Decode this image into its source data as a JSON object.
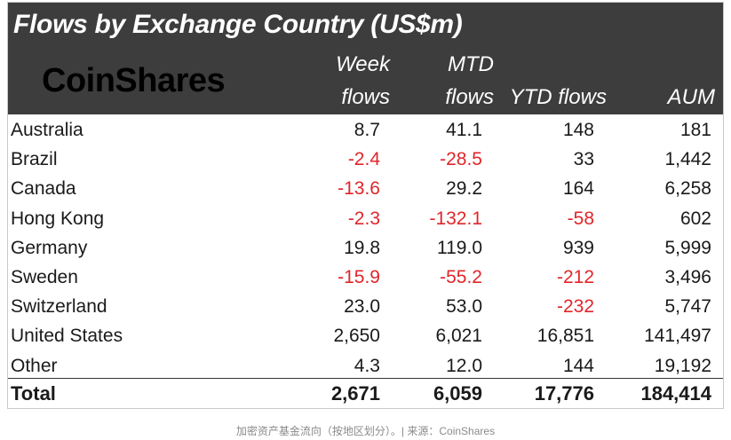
{
  "title": "Flows by Exchange Country (US$m)",
  "logo": "CoinShares",
  "headers": [
    {
      "l1": "Week",
      "l2": "flows"
    },
    {
      "l1": "MTD",
      "l2": "flows"
    },
    {
      "l1": "",
      "l2": "YTD flows"
    },
    {
      "l1": "",
      "l2": "AUM"
    }
  ],
  "rows": [
    {
      "country": "Australia",
      "week": "8.7",
      "mtd": "41.1",
      "ytd": "148",
      "aum": "181"
    },
    {
      "country": "Brazil",
      "week": "-2.4",
      "mtd": "-28.5",
      "ytd": "33",
      "aum": "1,442"
    },
    {
      "country": "Canada",
      "week": "-13.6",
      "mtd": "29.2",
      "ytd": "164",
      "aum": "6,258"
    },
    {
      "country": "Hong Kong",
      "week": "-2.3",
      "mtd": "-132.1",
      "ytd": "-58",
      "aum": "602"
    },
    {
      "country": "Germany",
      "week": "19.8",
      "mtd": "119.0",
      "ytd": "939",
      "aum": "5,999"
    },
    {
      "country": "Sweden",
      "week": "-15.9",
      "mtd": "-55.2",
      "ytd": "-212",
      "aum": "3,496"
    },
    {
      "country": "Switzerland",
      "week": "23.0",
      "mtd": "53.0",
      "ytd": "-232",
      "aum": "5,747"
    },
    {
      "country": "United States",
      "week": "2,650",
      "mtd": "6,021",
      "ytd": "16,851",
      "aum": "141,497"
    },
    {
      "country": "Other",
      "week": "4.3",
      "mtd": "12.0",
      "ytd": "144",
      "aum": "19,192"
    }
  ],
  "total": {
    "label": "Total",
    "week": "2,671",
    "mtd": "6,059",
    "ytd": "17,776",
    "aum": "184,414"
  },
  "caption": "加密资产基金流向（按地区划分）。| 来源：CoinShares",
  "colors": {
    "header_bg": "#3d3d3d",
    "negative": "#e0262b",
    "text": "#1a1a1a"
  }
}
